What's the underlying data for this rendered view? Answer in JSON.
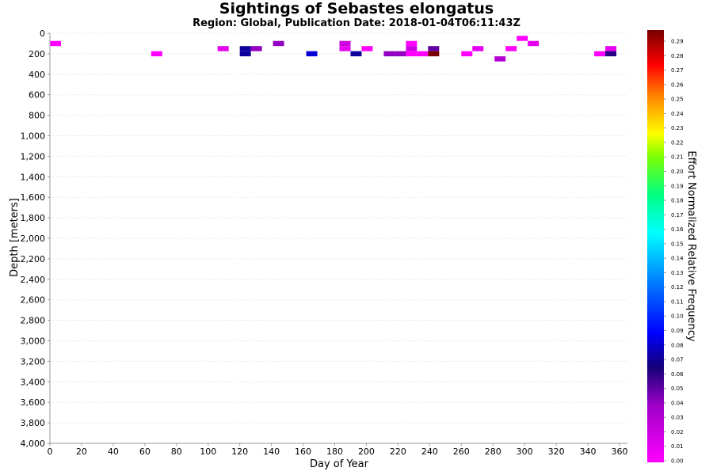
{
  "chart_data": {
    "type": "heatmap",
    "title": "Sightings of Sebastes elongatus",
    "subtitle": "Region: Global, Publication Date: 2018-01-04T06:11:43Z",
    "xlabel": "Day of Year",
    "ylabel": "Depth [meters]",
    "xlim": [
      0,
      365
    ],
    "ylim": [
      0,
      4000
    ],
    "y_inverted": true,
    "x_ticks": [
      "0",
      "20",
      "40",
      "60",
      "80",
      "100",
      "120",
      "140",
      "160",
      "180",
      "200",
      "220",
      "240",
      "260",
      "280",
      "300",
      "320",
      "340",
      "360"
    ],
    "y_ticks": [
      "0",
      "200",
      "400",
      "600",
      "800",
      "1,000",
      "1,200",
      "1,400",
      "1,600",
      "1,800",
      "2,000",
      "2,200",
      "2,400",
      "2,600",
      "2,800",
      "3,000",
      "3,200",
      "3,400",
      "3,600",
      "3,800",
      "4,000"
    ],
    "grid": true,
    "colorbar": {
      "label": "Effort Normalized Relative Frequency",
      "ticks": [
        "0.29",
        "0.28",
        "0.27",
        "0.26",
        "0.25",
        "0.24",
        "0.23",
        "0.22",
        "0.21",
        "0.20",
        "0.19",
        "0.18",
        "0.17",
        "0.16",
        "0.15",
        "0.14",
        "0.13",
        "0.12",
        "0.11",
        "0.10",
        "0.09",
        "0.08",
        "0.07",
        "0.06",
        "0.05",
        "0.04",
        "0.03",
        "0.02",
        "0.01",
        "0.00"
      ],
      "range": [
        0,
        0.29
      ]
    },
    "cell_width_days": 7,
    "cell_height_m": 50,
    "cells": [
      {
        "day": 0,
        "depth": 100,
        "value": 0.0
      },
      {
        "day": 64,
        "depth": 200,
        "value": 0.0
      },
      {
        "day": 106,
        "depth": 150,
        "value": 0.01
      },
      {
        "day": 120,
        "depth": 150,
        "value": 0.07
      },
      {
        "day": 120,
        "depth": 200,
        "value": 0.07
      },
      {
        "day": 127,
        "depth": 150,
        "value": 0.04
      },
      {
        "day": 141,
        "depth": 100,
        "value": 0.04
      },
      {
        "day": 162,
        "depth": 200,
        "value": 0.08
      },
      {
        "day": 183,
        "depth": 100,
        "value": 0.02
      },
      {
        "day": 183,
        "depth": 150,
        "value": 0.01
      },
      {
        "day": 190,
        "depth": 200,
        "value": 0.07
      },
      {
        "day": 197,
        "depth": 150,
        "value": 0.0
      },
      {
        "day": 211,
        "depth": 200,
        "value": 0.04
      },
      {
        "day": 218,
        "depth": 200,
        "value": 0.04
      },
      {
        "day": 225,
        "depth": 100,
        "value": 0.0
      },
      {
        "day": 225,
        "depth": 150,
        "value": 0.02
      },
      {
        "day": 225,
        "depth": 200,
        "value": 0.0
      },
      {
        "day": 232,
        "depth": 200,
        "value": 0.0
      },
      {
        "day": 239,
        "depth": 150,
        "value": 0.05
      },
      {
        "day": 239,
        "depth": 200,
        "value": 0.29
      },
      {
        "day": 260,
        "depth": 200,
        "value": 0.0
      },
      {
        "day": 267,
        "depth": 150,
        "value": 0.01
      },
      {
        "day": 281,
        "depth": 250,
        "value": 0.03
      },
      {
        "day": 288,
        "depth": 150,
        "value": 0.0
      },
      {
        "day": 295,
        "depth": 50,
        "value": 0.0
      },
      {
        "day": 302,
        "depth": 100,
        "value": 0.01
      },
      {
        "day": 344,
        "depth": 200,
        "value": 0.0
      },
      {
        "day": 351,
        "depth": 150,
        "value": 0.01
      },
      {
        "day": 351,
        "depth": 200,
        "value": 0.06
      }
    ]
  }
}
